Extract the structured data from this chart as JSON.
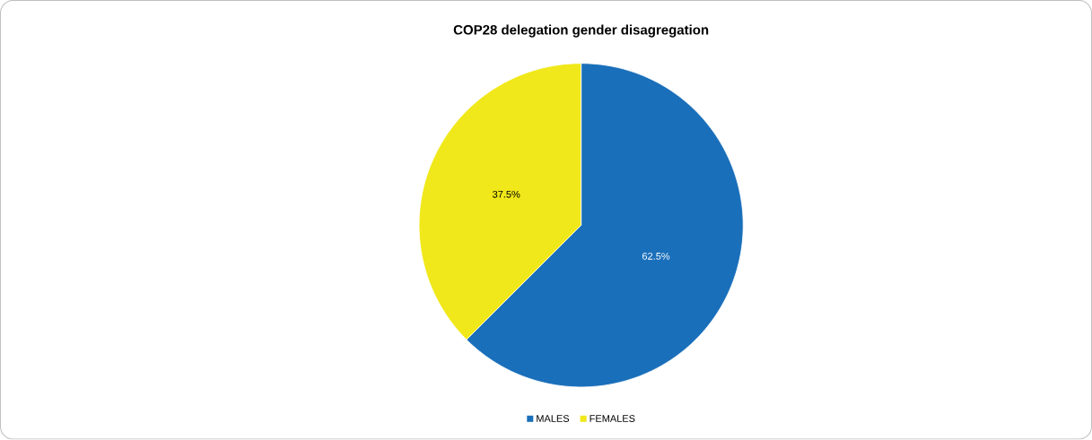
{
  "chart_data": {
    "type": "pie",
    "title": "COP28 delegation gender disagregation",
    "categories": [
      "MALES",
      "FEMALES"
    ],
    "values": [
      62.5,
      37.5
    ],
    "colors": [
      "#1a6fba",
      "#f0e81a"
    ],
    "value_labels": [
      "62.5%",
      "37.5%"
    ],
    "legend": "bottom"
  }
}
